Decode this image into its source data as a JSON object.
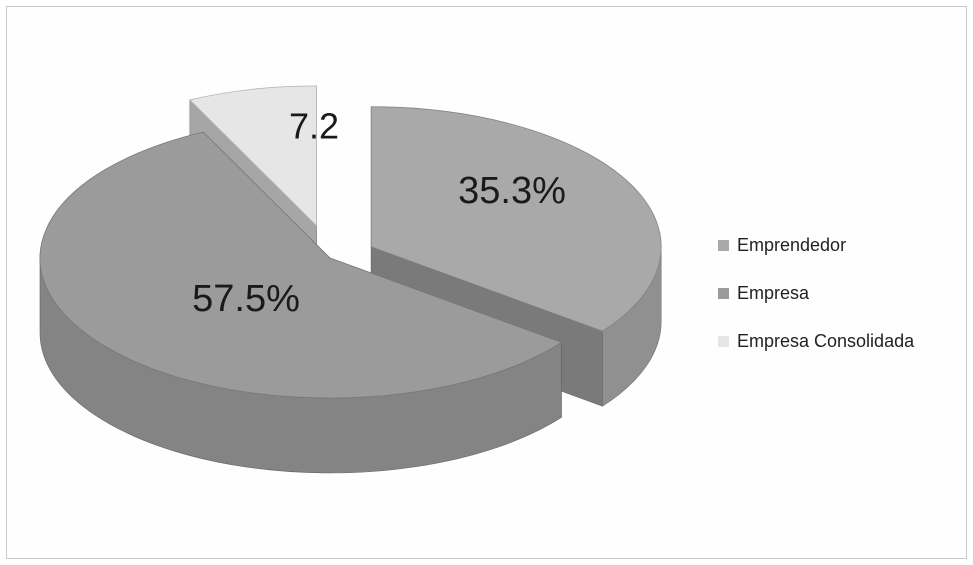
{
  "chart_data": {
    "type": "pie",
    "title": "",
    "categories": [
      "Emprendedor",
      "Empresa",
      "Empresa Consolidada"
    ],
    "values": [
      35.3,
      57.5,
      7.2
    ],
    "data_labels": [
      "35.3%",
      "57.5%",
      "7.2"
    ],
    "colors": {
      "Emprendedor": "#a9a9a9",
      "Empresa": "#9b9b9b",
      "Empresa Consolidada": "#e6e6e6"
    },
    "style": "3d-exploded",
    "legend_position": "right"
  },
  "legend": {
    "items": [
      {
        "label": "Emprendedor",
        "color": "#a9a9a9"
      },
      {
        "label": "Empresa",
        "color": "#9b9b9b"
      },
      {
        "label": "Empresa Consolidada",
        "color": "#e6e6e6"
      }
    ]
  }
}
